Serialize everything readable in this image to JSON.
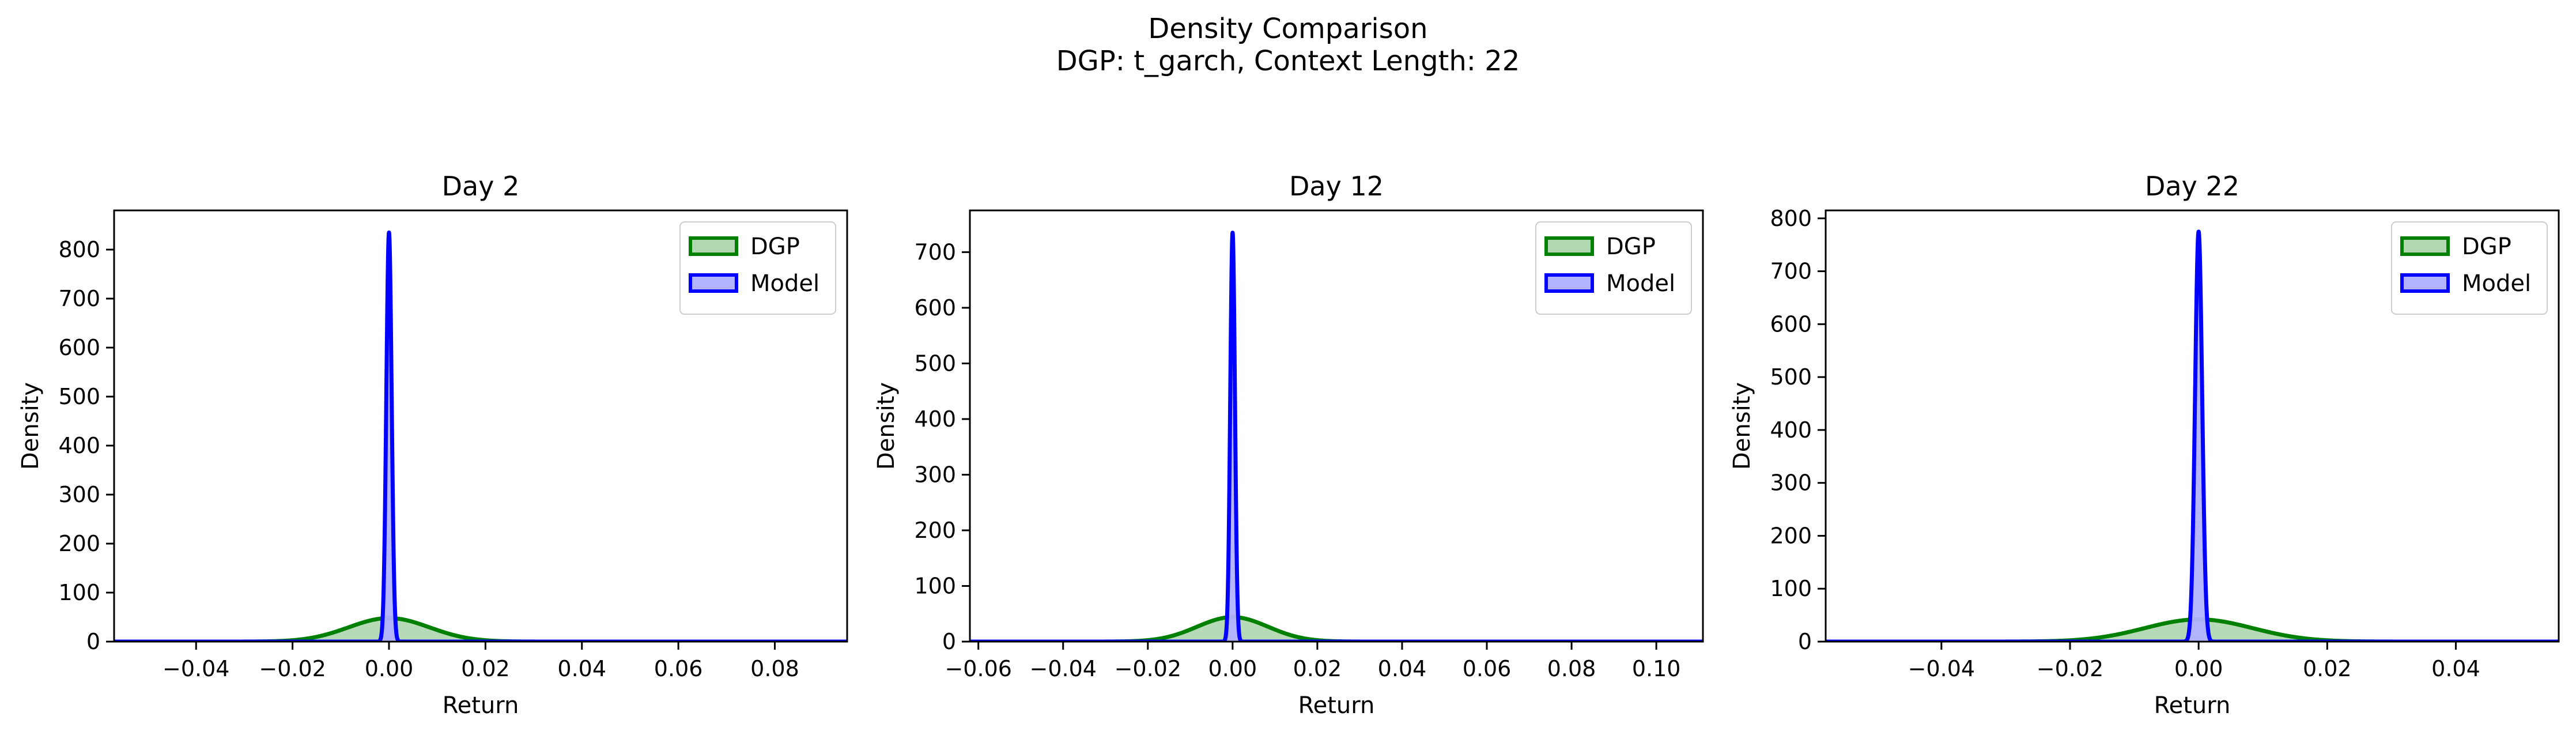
{
  "figure": {
    "title": "Density Comparison",
    "subtitle": "DGP: t_garch, Context Length: 22"
  },
  "colors": {
    "dgp_line": "#008000",
    "dgp_fill": "#b2d8b2",
    "model_line": "#0000ff",
    "model_fill": "#b2b2ff"
  },
  "chart_data": [
    {
      "type": "area",
      "title": "Day 2",
      "xlabel": "Return",
      "ylabel": "Density",
      "xlim": [
        -0.057,
        0.095
      ],
      "ylim": [
        0,
        880
      ],
      "xticks": [
        -0.04,
        -0.02,
        0.0,
        0.02,
        0.04,
        0.06,
        0.08
      ],
      "xtick_labels": [
        "−0.04",
        "−0.02",
        "0.00",
        "0.02",
        "0.04",
        "0.06",
        "0.08"
      ],
      "yticks": [
        0,
        100,
        200,
        300,
        400,
        500,
        600,
        700,
        800
      ],
      "ytick_labels": [
        "0",
        "100",
        "200",
        "300",
        "400",
        "500",
        "600",
        "700",
        "800"
      ],
      "legend": "upper-right",
      "series": [
        {
          "name": "DGP",
          "distribution": "gaussian-kde",
          "mean": 0.0,
          "peak_density": 48
        },
        {
          "name": "Model",
          "distribution": "gaussian-kde",
          "mean": 0.0,
          "peak_density": 835
        }
      ]
    },
    {
      "type": "area",
      "title": "Day 12",
      "xlabel": "Return",
      "ylabel": "Density",
      "xlim": [
        -0.062,
        0.111
      ],
      "ylim": [
        0,
        775
      ],
      "xticks": [
        -0.06,
        -0.04,
        -0.02,
        0.0,
        0.02,
        0.04,
        0.06,
        0.08,
        0.1
      ],
      "xtick_labels": [
        "−0.06",
        "−0.04",
        "−0.02",
        "0.00",
        "0.02",
        "0.04",
        "0.06",
        "0.08",
        "0.10"
      ],
      "yticks": [
        0,
        100,
        200,
        300,
        400,
        500,
        600,
        700
      ],
      "ytick_labels": [
        "0",
        "100",
        "200",
        "300",
        "400",
        "500",
        "600",
        "700"
      ],
      "legend": "upper-right",
      "series": [
        {
          "name": "DGP",
          "distribution": "gaussian-kde",
          "mean": 0.0,
          "peak_density": 44
        },
        {
          "name": "Model",
          "distribution": "gaussian-kde",
          "mean": 0.0,
          "peak_density": 735
        }
      ]
    },
    {
      "type": "area",
      "title": "Day 22",
      "xlabel": "Return",
      "ylabel": "Density",
      "xlim": [
        -0.058,
        0.056
      ],
      "ylim": [
        0,
        815
      ],
      "xticks": [
        -0.04,
        -0.02,
        0.0,
        0.02,
        0.04
      ],
      "xtick_labels": [
        "−0.04",
        "−0.02",
        "0.00",
        "0.02",
        "0.04"
      ],
      "yticks": [
        0,
        100,
        200,
        300,
        400,
        500,
        600,
        700,
        800
      ],
      "ytick_labels": [
        "0",
        "100",
        "200",
        "300",
        "400",
        "500",
        "600",
        "700",
        "800"
      ],
      "legend": "upper-right",
      "series": [
        {
          "name": "DGP",
          "distribution": "gaussian-kde",
          "mean": 0.0,
          "peak_density": 42
        },
        {
          "name": "Model",
          "distribution": "gaussian-kde",
          "mean": 0.0,
          "peak_density": 775
        }
      ]
    }
  ]
}
